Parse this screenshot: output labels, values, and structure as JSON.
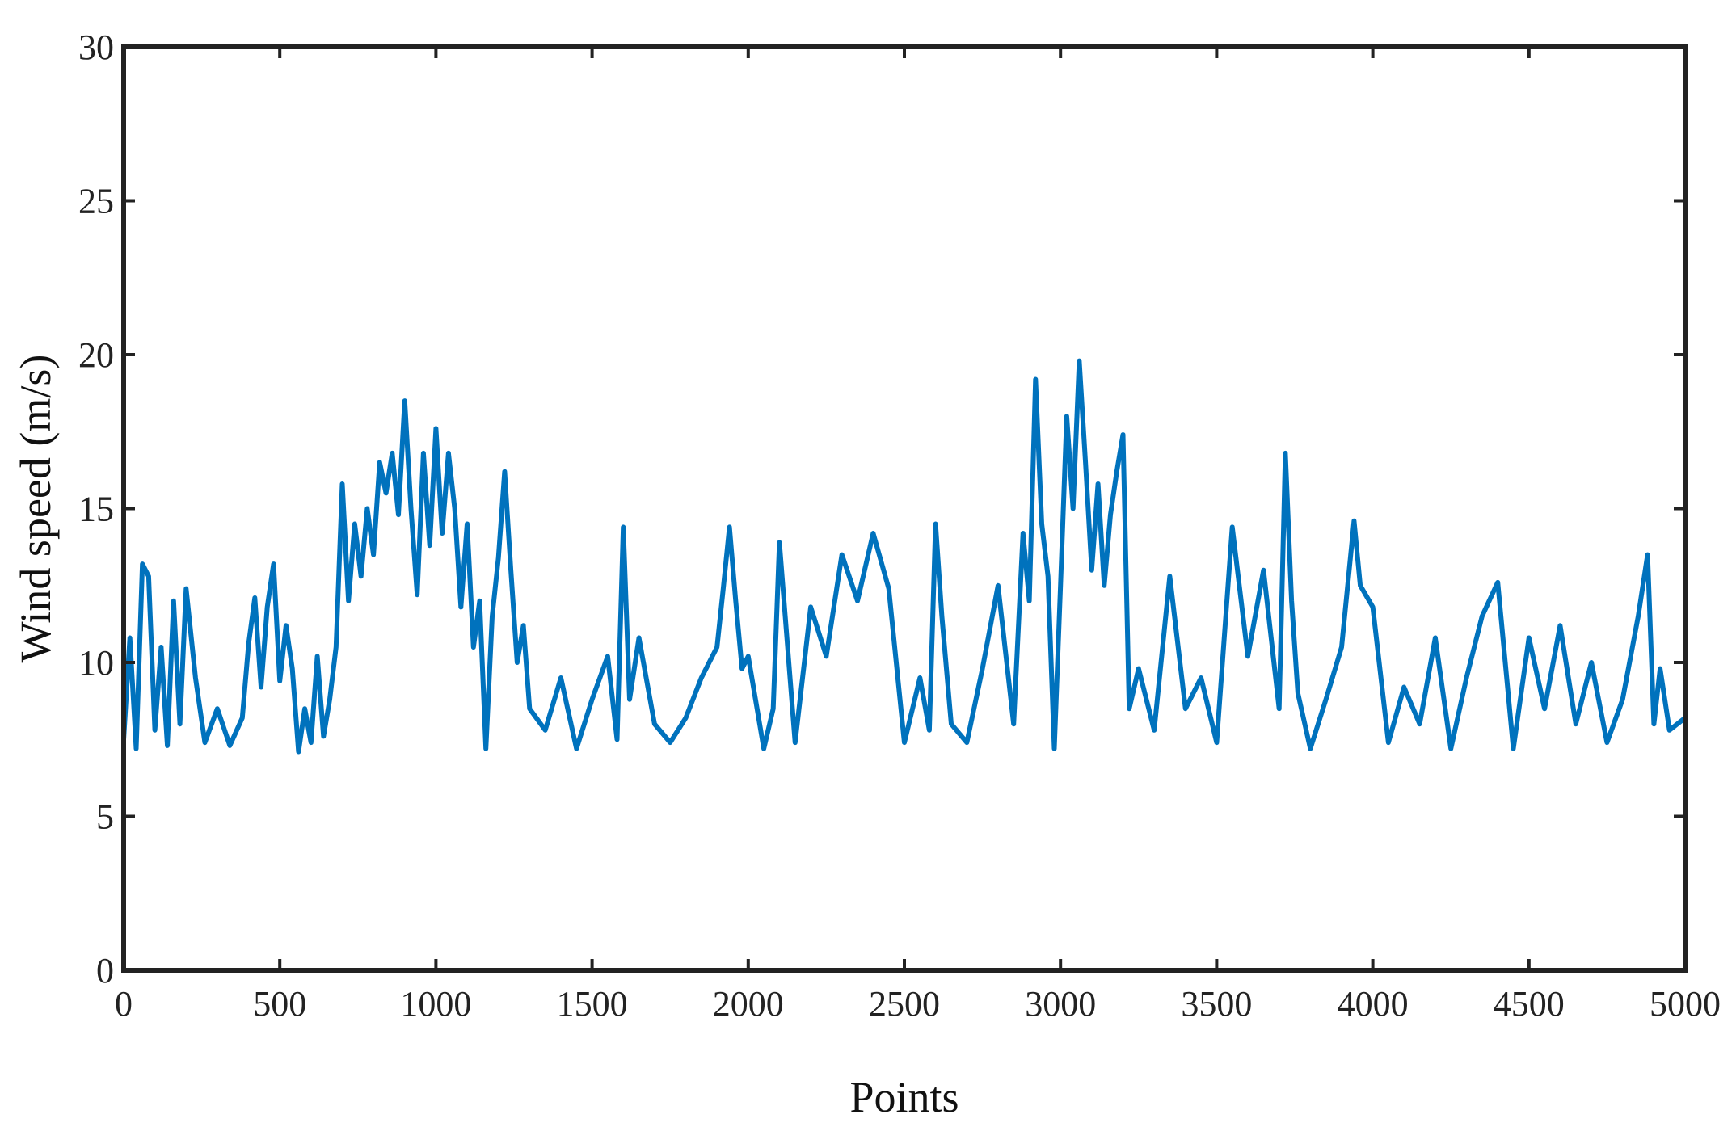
{
  "chart_data": {
    "type": "line",
    "title": "",
    "xlabel": "Points",
    "ylabel": "Wind speed (m/s)",
    "xlim": [
      0,
      5000
    ],
    "ylim": [
      0,
      30
    ],
    "xticks": [
      0,
      500,
      1000,
      1500,
      2000,
      2500,
      3000,
      3500,
      4000,
      4500,
      5000
    ],
    "yticks": [
      0,
      5,
      10,
      15,
      20,
      25,
      30
    ],
    "grid": false,
    "legend": "none",
    "colors": {
      "line": "#0072BD",
      "axes": "#222222"
    },
    "series": [
      {
        "x": [
          0,
          20,
          40,
          60,
          80,
          100,
          120,
          140,
          160,
          180,
          200,
          230,
          260,
          300,
          340,
          380,
          400,
          420,
          440,
          460,
          480,
          500,
          520,
          540,
          560,
          580,
          600,
          620,
          640,
          660,
          680,
          700,
          720,
          740,
          760,
          780,
          800,
          820,
          840,
          860,
          880,
          900,
          920,
          940,
          960,
          980,
          1000,
          1020,
          1040,
          1060,
          1080,
          1100,
          1120,
          1140,
          1160,
          1180,
          1200,
          1220,
          1240,
          1260,
          1280,
          1300,
          1350,
          1400,
          1450,
          1500,
          1550,
          1580,
          1600,
          1620,
          1650,
          1700,
          1750,
          1800,
          1850,
          1900,
          1920,
          1940,
          1960,
          1980,
          2000,
          2050,
          2080,
          2100,
          2150,
          2200,
          2250,
          2300,
          2350,
          2400,
          2450,
          2500,
          2550,
          2580,
          2600,
          2620,
          2650,
          2700,
          2750,
          2800,
          2850,
          2880,
          2900,
          2920,
          2940,
          2960,
          2980,
          3000,
          3020,
          3040,
          3060,
          3080,
          3100,
          3120,
          3140,
          3160,
          3180,
          3200,
          3220,
          3250,
          3300,
          3350,
          3400,
          3450,
          3500,
          3550,
          3600,
          3650,
          3700,
          3720,
          3740,
          3760,
          3800,
          3850,
          3900,
          3940,
          3960,
          4000,
          4050,
          4100,
          4150,
          4200,
          4250,
          4300,
          4350,
          4400,
          4450,
          4500,
          4550,
          4600,
          4650,
          4700,
          4750,
          4800,
          4850,
          4880,
          4900,
          4920,
          4950,
          5000
        ],
        "y": [
          7.5,
          10.8,
          7.2,
          13.2,
          12.8,
          7.8,
          10.5,
          7.3,
          12.0,
          8.0,
          12.4,
          9.5,
          7.4,
          8.5,
          7.3,
          8.2,
          10.6,
          12.1,
          9.2,
          11.8,
          13.2,
          9.4,
          11.2,
          9.8,
          7.1,
          8.5,
          7.4,
          10.2,
          7.6,
          8.8,
          10.5,
          15.8,
          12.0,
          14.5,
          12.8,
          15.0,
          13.5,
          16.5,
          15.5,
          16.8,
          14.8,
          18.5,
          15.0,
          12.2,
          16.8,
          13.8,
          17.6,
          14.2,
          16.8,
          15.0,
          11.8,
          14.5,
          10.5,
          12.0,
          7.2,
          11.5,
          13.4,
          16.2,
          13.0,
          10.0,
          11.2,
          8.5,
          7.8,
          9.5,
          7.2,
          8.8,
          10.2,
          7.5,
          14.4,
          8.8,
          10.8,
          8.0,
          7.4,
          8.2,
          9.5,
          10.5,
          12.4,
          14.4,
          12.0,
          9.8,
          10.2,
          7.2,
          8.5,
          13.9,
          7.4,
          11.8,
          10.2,
          13.5,
          12.0,
          14.2,
          12.4,
          7.4,
          9.5,
          7.8,
          14.5,
          11.5,
          8.0,
          7.4,
          9.8,
          12.5,
          8.0,
          14.2,
          12.0,
          19.2,
          14.5,
          12.8,
          7.2,
          12.5,
          18.0,
          15.0,
          19.8,
          16.5,
          13.0,
          15.8,
          12.5,
          14.8,
          16.2,
          17.4,
          8.5,
          9.8,
          7.8,
          12.8,
          8.5,
          9.5,
          7.4,
          14.4,
          10.2,
          13.0,
          8.5,
          16.8,
          12.0,
          9.0,
          7.2,
          8.8,
          10.5,
          14.6,
          12.5,
          11.8,
          7.4,
          9.2,
          8.0,
          10.8,
          7.2,
          9.5,
          11.5,
          12.6,
          7.2,
          10.8,
          8.5,
          11.2,
          8.0,
          10.0,
          7.4,
          8.8,
          11.5,
          13.5,
          8.0,
          9.8,
          7.8,
          8.2
        ]
      }
    ]
  }
}
